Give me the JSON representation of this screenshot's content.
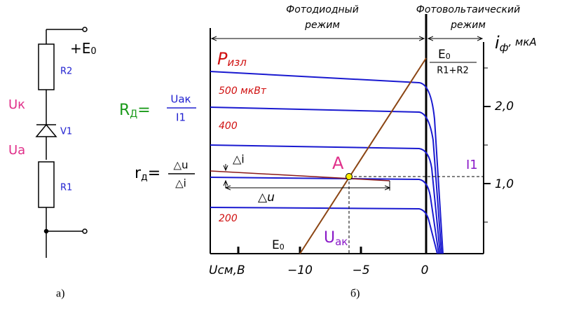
{
  "circuit": {
    "supply": "+E",
    "supply_sub": "0",
    "r2": "R2",
    "uk": "Uк",
    "v1": "V1",
    "ua": "Uа",
    "r1": "R1",
    "caption": "а)"
  },
  "formulas": {
    "rd_big": "R",
    "rd_big_sub": "Д",
    "eq": "=",
    "rd_big_num": "Uак",
    "rd_big_den": "I1",
    "rd_small": "r",
    "rd_small_sub": "д",
    "rd_small_num": "△u",
    "rd_small_den": "△i"
  },
  "chart": {
    "mode_left": [
      "Фотодиодный",
      "режим"
    ],
    "mode_right": [
      "Фотовольтаический",
      "режим"
    ],
    "y_axis": {
      "i": "i",
      "sub": "ф",
      "unit": ", мкА"
    },
    "power": "P",
    "power_sub": "изл",
    "curve_labels": [
      "500 мкВт",
      "400",
      "200"
    ],
    "e0_fraction": {
      "num": "E",
      "num_sub": "0",
      "den": "R1+R2"
    },
    "yticks": [
      "2,0",
      "1,0"
    ],
    "i1": "I1",
    "point": "A",
    "delta_i": "△i",
    "delta_u": "△u",
    "uak": "U",
    "uak_sub": "ак",
    "e0": "E",
    "e0_sub": "0",
    "x_title": "Uсм,В",
    "xticks": [
      "−10",
      "−5",
      "0"
    ],
    "caption": "б)"
  }
}
